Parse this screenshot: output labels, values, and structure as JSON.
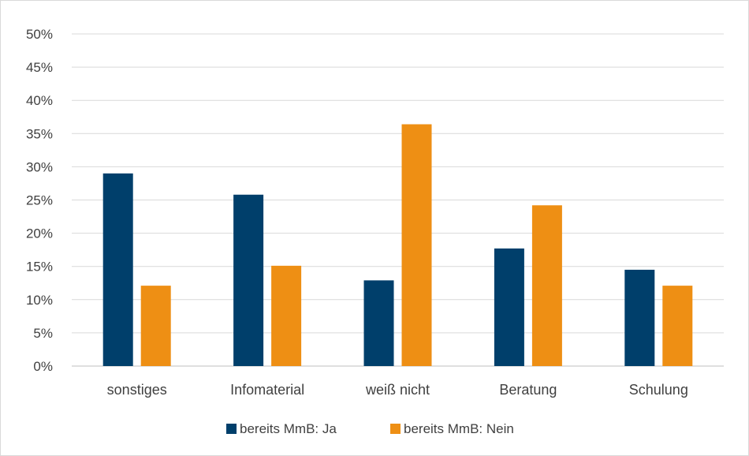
{
  "chart_data": {
    "type": "bar",
    "categories": [
      "sonstiges",
      "Infomaterial",
      "weiß nicht",
      "Beratung",
      "Schulung"
    ],
    "series": [
      {
        "name": "bereits MmB: Ja",
        "values": [
          0.29,
          0.258,
          0.129,
          0.177,
          0.145
        ],
        "color": "#003f6b"
      },
      {
        "name": "bereits MmB: Nein",
        "values": [
          0.121,
          0.151,
          0.364,
          0.242,
          0.121
        ],
        "color": "#ee8f14"
      }
    ],
    "ylim": [
      0,
      0.5
    ],
    "yticks": [
      0,
      0.05,
      0.1,
      0.15,
      0.2,
      0.25,
      0.3,
      0.35,
      0.4,
      0.45,
      0.5
    ],
    "ytick_labels": [
      "0%",
      "5%",
      "10%",
      "15%",
      "20%",
      "25%",
      "30%",
      "35%",
      "40%",
      "45%",
      "50%"
    ],
    "grid": true,
    "legend_position": "bottom",
    "title": "",
    "xlabel": "",
    "ylabel": ""
  }
}
